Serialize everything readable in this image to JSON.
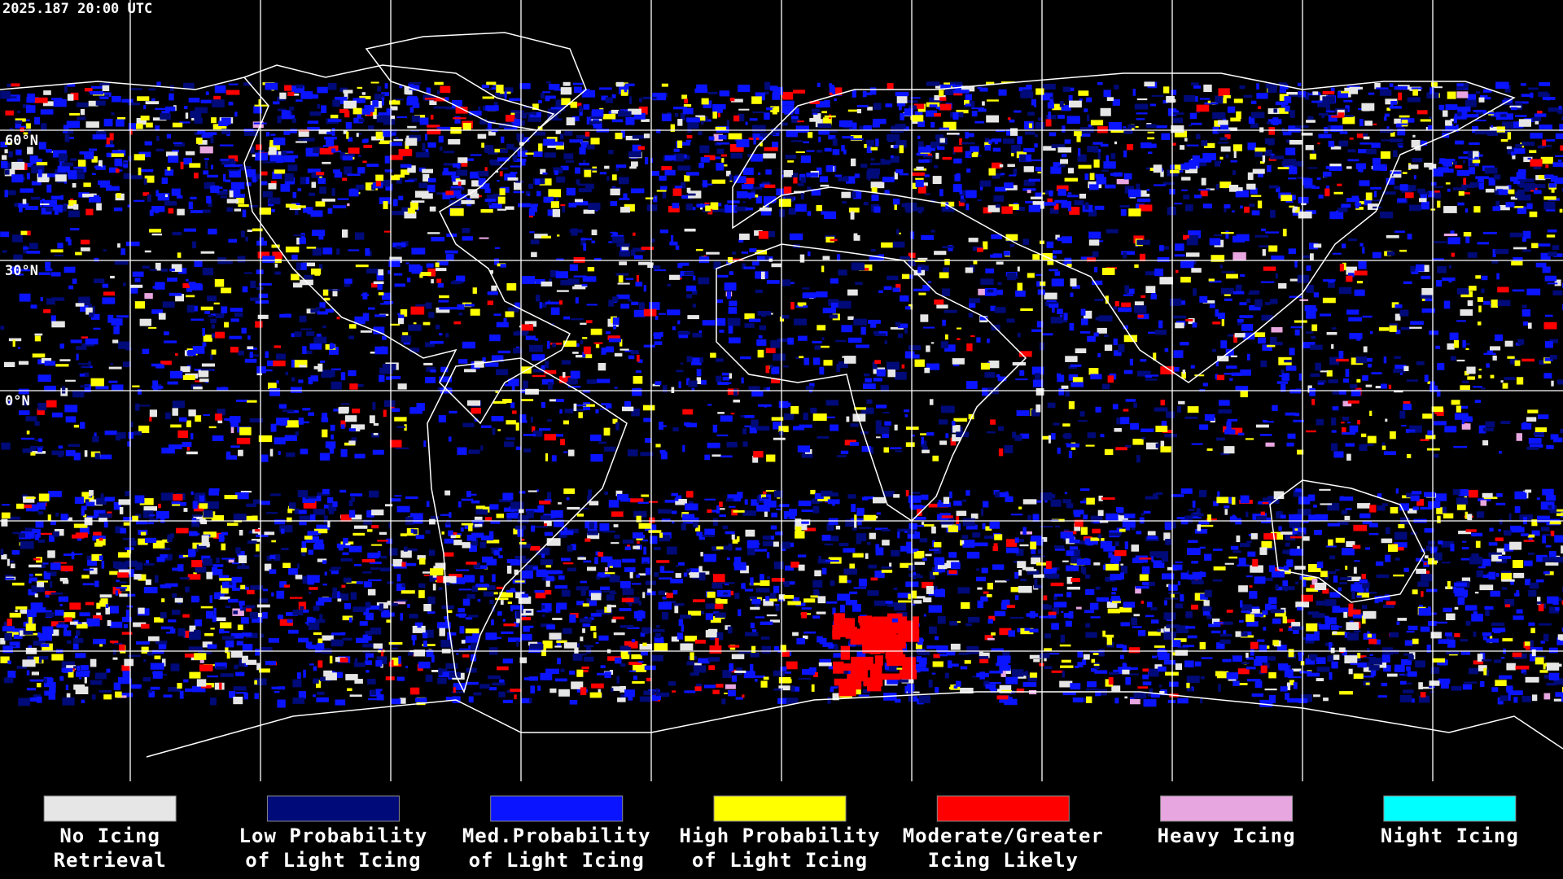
{
  "header": {
    "timestamp": "2025.187 20:00 UTC"
  },
  "map": {
    "latitude_labels": [
      "60°N",
      "30°N",
      "0°N"
    ]
  },
  "legend": {
    "items": [
      {
        "lines": [
          "No Icing",
          "Retrieval"
        ],
        "color": "#e6e6e6"
      },
      {
        "lines": [
          "Low Probability",
          "of Light Icing"
        ],
        "color": "#000a78"
      },
      {
        "lines": [
          "Med.Probability",
          "of Light Icing"
        ],
        "color": "#0a14ff"
      },
      {
        "lines": [
          "High Probability",
          "of Light Icing"
        ],
        "color": "#ffff00"
      },
      {
        "lines": [
          "Moderate/Greater",
          "Icing Likely"
        ],
        "color": "#ff0000"
      },
      {
        "lines": [
          "Heavy Icing"
        ],
        "color": "#e8a6e0"
      },
      {
        "lines": [
          "Night Icing"
        ],
        "color": "#00ffff"
      }
    ]
  }
}
